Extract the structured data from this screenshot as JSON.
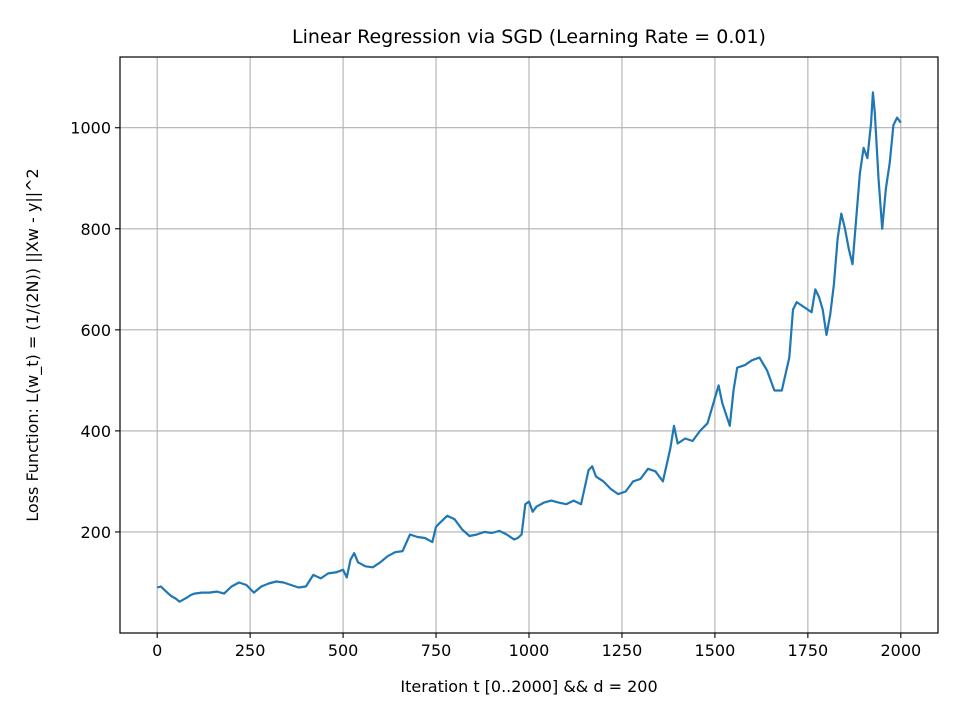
{
  "chart_data": {
    "type": "line",
    "title": "Linear Regression via SGD (Learning Rate = 0.01)",
    "xlabel": "Iteration t [0..2000] && d = 200",
    "ylabel": "Loss Function: L(w_t) = (1/(2N)) ||Xw - y||^2",
    "xlim": [
      -100,
      2100
    ],
    "ylim": [
      0,
      1140
    ],
    "xticks": [
      0,
      250,
      500,
      750,
      1000,
      1250,
      1500,
      1750,
      2000
    ],
    "yticks": [
      200,
      400,
      600,
      800,
      1000
    ],
    "grid": true,
    "series": [
      {
        "color": "#1f77b4",
        "points": [
          [
            0,
            90
          ],
          [
            10,
            92
          ],
          [
            20,
            85
          ],
          [
            30,
            78
          ],
          [
            40,
            72
          ],
          [
            50,
            68
          ],
          [
            60,
            62
          ],
          [
            70,
            66
          ],
          [
            80,
            70
          ],
          [
            90,
            75
          ],
          [
            100,
            78
          ],
          [
            120,
            80
          ],
          [
            140,
            80
          ],
          [
            160,
            82
          ],
          [
            180,
            78
          ],
          [
            200,
            92
          ],
          [
            220,
            100
          ],
          [
            240,
            95
          ],
          [
            260,
            80
          ],
          [
            280,
            92
          ],
          [
            300,
            98
          ],
          [
            320,
            102
          ],
          [
            340,
            100
          ],
          [
            360,
            95
          ],
          [
            380,
            90
          ],
          [
            400,
            92
          ],
          [
            420,
            115
          ],
          [
            440,
            108
          ],
          [
            460,
            118
          ],
          [
            480,
            120
          ],
          [
            500,
            125
          ],
          [
            510,
            110
          ],
          [
            520,
            145
          ],
          [
            530,
            158
          ],
          [
            540,
            140
          ],
          [
            560,
            132
          ],
          [
            580,
            130
          ],
          [
            600,
            140
          ],
          [
            620,
            152
          ],
          [
            640,
            160
          ],
          [
            660,
            162
          ],
          [
            680,
            195
          ],
          [
            700,
            190
          ],
          [
            720,
            188
          ],
          [
            740,
            180
          ],
          [
            750,
            210
          ],
          [
            760,
            218
          ],
          [
            780,
            232
          ],
          [
            800,
            225
          ],
          [
            820,
            205
          ],
          [
            840,
            192
          ],
          [
            860,
            195
          ],
          [
            880,
            200
          ],
          [
            900,
            198
          ],
          [
            920,
            202
          ],
          [
            940,
            195
          ],
          [
            960,
            185
          ],
          [
            970,
            188
          ],
          [
            980,
            195
          ],
          [
            990,
            255
          ],
          [
            1000,
            260
          ],
          [
            1010,
            240
          ],
          [
            1020,
            250
          ],
          [
            1040,
            258
          ],
          [
            1060,
            262
          ],
          [
            1080,
            258
          ],
          [
            1100,
            255
          ],
          [
            1120,
            262
          ],
          [
            1140,
            255
          ],
          [
            1160,
            322
          ],
          [
            1170,
            330
          ],
          [
            1180,
            310
          ],
          [
            1200,
            300
          ],
          [
            1220,
            285
          ],
          [
            1240,
            275
          ],
          [
            1260,
            280
          ],
          [
            1280,
            300
          ],
          [
            1300,
            305
          ],
          [
            1320,
            325
          ],
          [
            1340,
            320
          ],
          [
            1360,
            300
          ],
          [
            1380,
            365
          ],
          [
            1390,
            410
          ],
          [
            1400,
            375
          ],
          [
            1420,
            385
          ],
          [
            1440,
            380
          ],
          [
            1460,
            400
          ],
          [
            1480,
            415
          ],
          [
            1500,
            465
          ],
          [
            1510,
            490
          ],
          [
            1520,
            455
          ],
          [
            1540,
            410
          ],
          [
            1550,
            480
          ],
          [
            1560,
            525
          ],
          [
            1580,
            530
          ],
          [
            1600,
            540
          ],
          [
            1620,
            545
          ],
          [
            1640,
            520
          ],
          [
            1660,
            480
          ],
          [
            1680,
            480
          ],
          [
            1700,
            545
          ],
          [
            1710,
            640
          ],
          [
            1720,
            655
          ],
          [
            1740,
            645
          ],
          [
            1760,
            635
          ],
          [
            1770,
            680
          ],
          [
            1780,
            665
          ],
          [
            1790,
            640
          ],
          [
            1800,
            590
          ],
          [
            1810,
            630
          ],
          [
            1820,
            690
          ],
          [
            1830,
            780
          ],
          [
            1840,
            830
          ],
          [
            1850,
            800
          ],
          [
            1860,
            760
          ],
          [
            1870,
            730
          ],
          [
            1880,
            820
          ],
          [
            1890,
            910
          ],
          [
            1900,
            960
          ],
          [
            1910,
            940
          ],
          [
            1920,
            1010
          ],
          [
            1925,
            1070
          ],
          [
            1930,
            1030
          ],
          [
            1940,
            900
          ],
          [
            1950,
            800
          ],
          [
            1960,
            880
          ],
          [
            1970,
            930
          ],
          [
            1980,
            1005
          ],
          [
            1990,
            1020
          ],
          [
            2000,
            1010
          ]
        ]
      }
    ]
  }
}
